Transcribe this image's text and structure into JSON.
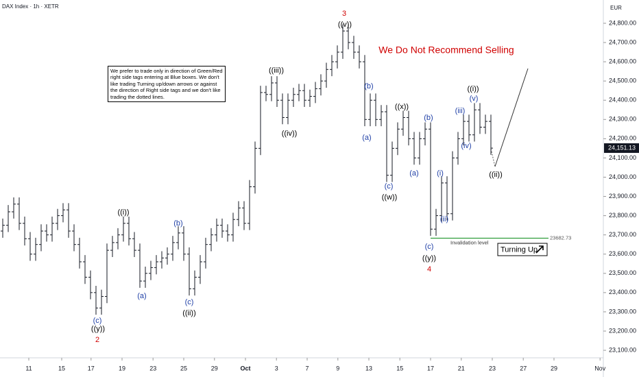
{
  "chart_data": {
    "type": "ohlc",
    "title": "DAX Index · 1h · XETR",
    "currency": "EUR",
    "color": "#131722",
    "ylim": [
      23061,
      24921
    ],
    "yticks": [
      {
        "value": 24800,
        "label": "24,800.00"
      },
      {
        "value": 24700,
        "label": "24,700.00"
      },
      {
        "value": 24600,
        "label": "24,600.00"
      },
      {
        "value": 24500,
        "label": "24,500.00"
      },
      {
        "value": 24400,
        "label": "24,400.00"
      },
      {
        "value": 24300,
        "label": "24,300.00"
      },
      {
        "value": 24200,
        "label": "24,200.00"
      },
      {
        "value": 24100,
        "label": "24,100.00"
      },
      {
        "value": 24000,
        "label": "24,000.00"
      },
      {
        "value": 23900,
        "label": "23,900.00"
      },
      {
        "value": 23800,
        "label": "23,800.00"
      },
      {
        "value": 23700,
        "label": "23,700.00"
      },
      {
        "value": 23600,
        "label": "23,600.00"
      },
      {
        "value": 23500,
        "label": "23,500.00"
      },
      {
        "value": 23400,
        "label": "23,400.00"
      },
      {
        "value": 23300,
        "label": "23,300.00"
      },
      {
        "value": 23200,
        "label": "23,200.00"
      },
      {
        "value": 23100,
        "label": "23,100.00"
      }
    ],
    "xlim": [
      -0.5,
      109.5
    ],
    "xticks": [
      {
        "value": 4.75,
        "label": "11"
      },
      {
        "value": 10.75,
        "label": "15"
      },
      {
        "value": 16.1,
        "label": "17"
      },
      {
        "value": 21.75,
        "label": "19"
      },
      {
        "value": 27.4,
        "label": "23"
      },
      {
        "value": 33,
        "label": "25"
      },
      {
        "value": 38.6,
        "label": "29"
      },
      {
        "value": 44.25,
        "label": "Oct"
      },
      {
        "value": 49.9,
        "label": "3"
      },
      {
        "value": 55.5,
        "label": "7"
      },
      {
        "value": 61.1,
        "label": "9"
      },
      {
        "value": 66.75,
        "label": "13"
      },
      {
        "value": 72.4,
        "label": "15"
      },
      {
        "value": 78,
        "label": "17"
      },
      {
        "value": 83.6,
        "label": "21"
      },
      {
        "value": 89.25,
        "label": "23"
      },
      {
        "value": 94.9,
        "label": "27"
      },
      {
        "value": 100.5,
        "label": "29"
      },
      {
        "value": 108.9,
        "label": "Nov"
      }
    ],
    "ohlc": [
      [
        23720,
        23785,
        23685,
        23750
      ],
      [
        23750,
        23855,
        23715,
        23820
      ],
      [
        23820,
        23895,
        23785,
        23860
      ],
      [
        23860,
        23895,
        23725,
        23760
      ],
      [
        23760,
        23795,
        23645,
        23680
      ],
      [
        23680,
        23715,
        23565,
        23600
      ],
      [
        23600,
        23685,
        23565,
        23650
      ],
      [
        23650,
        23755,
        23615,
        23720
      ],
      [
        23720,
        23755,
        23665,
        23700
      ],
      [
        23700,
        23795,
        23665,
        23760
      ],
      [
        23760,
        23835,
        23725,
        23800
      ],
      [
        23800,
        23865,
        23765,
        23830
      ],
      [
        23830,
        23865,
        23685,
        23720
      ],
      [
        23720,
        23755,
        23615,
        23650
      ],
      [
        23650,
        23685,
        23525,
        23560
      ],
      [
        23560,
        23595,
        23445,
        23480
      ],
      [
        23480,
        23515,
        23365,
        23400
      ],
      [
        23400,
        23435,
        23285,
        23320
      ],
      [
        23320,
        23415,
        23285,
        23380
      ],
      [
        23380,
        23655,
        23345,
        23620
      ],
      [
        23620,
        23695,
        23585,
        23660
      ],
      [
        23660,
        23735,
        23625,
        23700
      ],
      [
        23700,
        23795,
        23665,
        23760
      ],
      [
        23760,
        23795,
        23645,
        23680
      ],
      [
        23680,
        23715,
        23585,
        23620
      ],
      [
        23620,
        23655,
        23425,
        23460
      ],
      [
        23460,
        23535,
        23425,
        23500
      ],
      [
        23500,
        23565,
        23465,
        23530
      ],
      [
        23530,
        23595,
        23495,
        23560
      ],
      [
        23560,
        23615,
        23525,
        23580
      ],
      [
        23580,
        23635,
        23545,
        23600
      ],
      [
        23600,
        23695,
        23565,
        23660
      ],
      [
        23660,
        23745,
        23625,
        23710
      ],
      [
        23710,
        23745,
        23565,
        23600
      ],
      [
        23600,
        23635,
        23385,
        23420
      ],
      [
        23420,
        23515,
        23385,
        23480
      ],
      [
        23480,
        23595,
        23445,
        23560
      ],
      [
        23560,
        23685,
        23525,
        23650
      ],
      [
        23650,
        23735,
        23615,
        23700
      ],
      [
        23700,
        23785,
        23665,
        23750
      ],
      [
        23750,
        23785,
        23685,
        23720
      ],
      [
        23720,
        23755,
        23665,
        23700
      ],
      [
        23700,
        23815,
        23665,
        23780
      ],
      [
        23780,
        23875,
        23745,
        23840
      ],
      [
        23840,
        23875,
        23725,
        23760
      ],
      [
        23760,
        23985,
        23725,
        23950
      ],
      [
        23950,
        24185,
        23915,
        24150
      ],
      [
        24150,
        24475,
        24115,
        24440
      ],
      [
        24440,
        24475,
        24395,
        24430
      ],
      [
        24430,
        24525,
        24395,
        24490
      ],
      [
        24490,
        24525,
        24365,
        24400
      ],
      [
        24400,
        24435,
        24275,
        24310
      ],
      [
        24310,
        24435,
        24275,
        24400
      ],
      [
        24400,
        24465,
        24365,
        24430
      ],
      [
        24430,
        24485,
        24395,
        24450
      ],
      [
        24450,
        24485,
        24365,
        24400
      ],
      [
        24400,
        24455,
        24365,
        24420
      ],
      [
        24420,
        24495,
        24385,
        24460
      ],
      [
        24460,
        24535,
        24425,
        24500
      ],
      [
        24500,
        24595,
        24465,
        24560
      ],
      [
        24560,
        24635,
        24525,
        24600
      ],
      [
        24600,
        24685,
        24565,
        24650
      ],
      [
        24650,
        24795,
        24615,
        24760
      ],
      [
        24760,
        24795,
        24665,
        24700
      ],
      [
        24700,
        24735,
        24615,
        24650
      ],
      [
        24650,
        24685,
        24565,
        24600
      ],
      [
        24600,
        24635,
        24265,
        24300
      ],
      [
        24300,
        24435,
        24265,
        24400
      ],
      [
        24400,
        24435,
        24265,
        24300
      ],
      [
        24300,
        24375,
        24265,
        24340
      ],
      [
        24340,
        24375,
        23975,
        24010
      ],
      [
        24010,
        24185,
        23975,
        24150
      ],
      [
        24150,
        24285,
        24115,
        24250
      ],
      [
        24250,
        24345,
        24215,
        24310
      ],
      [
        24310,
        24345,
        24165,
        24200
      ],
      [
        24200,
        24235,
        24065,
        24100
      ],
      [
        24100,
        24235,
        24065,
        24200
      ],
      [
        24200,
        24285,
        24165,
        24250
      ],
      [
        24250,
        24285,
        23695,
        23730
      ],
      [
        23730,
        23835,
        23695,
        23800
      ],
      [
        23800,
        24005,
        23765,
        23970
      ],
      [
        23970,
        24005,
        23775,
        23810
      ],
      [
        23810,
        24135,
        23775,
        24100
      ],
      [
        24100,
        24235,
        24065,
        24200
      ],
      [
        24200,
        24325,
        24165,
        24290
      ],
      [
        24290,
        24325,
        24185,
        24220
      ],
      [
        24220,
        24385,
        24185,
        24350
      ],
      [
        24350,
        24385,
        24225,
        24260
      ],
      [
        24260,
        24325,
        24225,
        24290
      ],
      [
        24290,
        24325,
        24116,
        24151
      ]
    ],
    "last_price": {
      "value": 24151.13,
      "label": "24,151.13"
    },
    "invalidation": {
      "value": 23682.73,
      "text": "Invalidation level"
    },
    "signal": "Turning Up",
    "headline": "We Do Not Recommend Selling",
    "note": "We prefer to trade only in direction of Green/Red right side tags entering at Blue boxes. We don't like trading Turning up/down arrows or against the direction of Right side tags and we don't like trading the dotted lines.",
    "annotations": [
      {
        "text": "3",
        "color": "#d00000"
      },
      {
        "text": "((v))",
        "color": "#000000"
      },
      {
        "text": "((iii))",
        "color": "#000000"
      },
      {
        "text": "((iv))",
        "color": "#000000"
      },
      {
        "text": "(b)",
        "color": "#1f3fa6"
      },
      {
        "text": "(a)",
        "color": "#1f3fa6"
      },
      {
        "text": "((x))",
        "color": "#000000"
      },
      {
        "text": "(b)",
        "color": "#1f3fa6"
      },
      {
        "text": "(a)",
        "color": "#1f3fa6"
      },
      {
        "text": "(c)",
        "color": "#1f3fa6"
      },
      {
        "text": "((w))",
        "color": "#000000"
      },
      {
        "text": "(c)",
        "color": "#1f3fa6"
      },
      {
        "text": "((y))",
        "color": "#000000"
      },
      {
        "text": "4",
        "color": "#d00000"
      },
      {
        "text": "(i)",
        "color": "#1f3fa6"
      },
      {
        "text": "(ii)",
        "color": "#1f3fa6"
      },
      {
        "text": "(iii)",
        "color": "#1f3fa6"
      },
      {
        "text": "(iv)",
        "color": "#1f3fa6"
      },
      {
        "text": "(v)",
        "color": "#1f3fa6"
      },
      {
        "text": "((i))",
        "color": "#000000"
      },
      {
        "text": "((ii))",
        "color": "#000000"
      },
      {
        "text": "((i))",
        "color": "#000000"
      },
      {
        "text": "(a)",
        "color": "#1f3fa6"
      },
      {
        "text": "(b)",
        "color": "#1f3fa6"
      },
      {
        "text": "(c)",
        "color": "#1f3fa6"
      },
      {
        "text": "((ii))",
        "color": "#000000"
      },
      {
        "text": "(c)",
        "color": "#1f3fa6"
      },
      {
        "text": "((y))",
        "color": "#000000"
      },
      {
        "text": "2",
        "color": "#d00000"
      }
    ]
  }
}
